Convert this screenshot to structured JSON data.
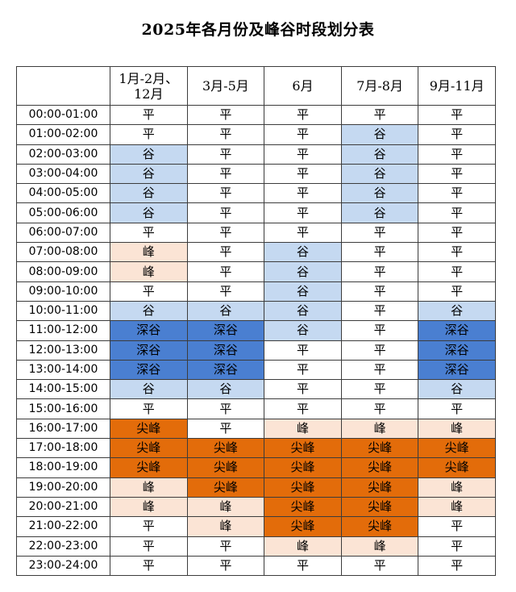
{
  "title": "2025年各月份及峰谷时段划分表",
  "header": {
    "time_col": "",
    "periods": [
      "1月-2月、12月",
      "3月-5月",
      "6月",
      "7月-8月",
      "9月-11月"
    ]
  },
  "rows": [
    {
      "time": "00:00-01:00",
      "cells": [
        "平",
        "平",
        "平",
        "平",
        "平"
      ]
    },
    {
      "time": "01:00-02:00",
      "cells": [
        "平",
        "平",
        "平",
        "谷",
        "平"
      ]
    },
    {
      "time": "02:00-03:00",
      "cells": [
        "谷",
        "平",
        "平",
        "谷",
        "平"
      ]
    },
    {
      "time": "03:00-04:00",
      "cells": [
        "谷",
        "平",
        "平",
        "谷",
        "平"
      ]
    },
    {
      "time": "04:00-05:00",
      "cells": [
        "谷",
        "平",
        "平",
        "谷",
        "平"
      ]
    },
    {
      "time": "05:00-06:00",
      "cells": [
        "谷",
        "平",
        "平",
        "谷",
        "平"
      ]
    },
    {
      "time": "06:00-07:00",
      "cells": [
        "平",
        "平",
        "平",
        "平",
        "平"
      ]
    },
    {
      "time": "07:00-08:00",
      "cells": [
        "峰",
        "平",
        "谷",
        "平",
        "平"
      ]
    },
    {
      "time": "08:00-09:00",
      "cells": [
        "峰",
        "平",
        "谷",
        "平",
        "平"
      ]
    },
    {
      "time": "09:00-10:00",
      "cells": [
        "平",
        "平",
        "谷",
        "平",
        "平"
      ]
    },
    {
      "time": "10:00-11:00",
      "cells": [
        "谷",
        "谷",
        "谷",
        "平",
        "谷"
      ]
    },
    {
      "time": "11:00-12:00",
      "cells": [
        "深谷",
        "深谷",
        "谷",
        "平",
        "深谷"
      ]
    },
    {
      "time": "12:00-13:00",
      "cells": [
        "深谷",
        "深谷",
        "平",
        "平",
        "深谷"
      ]
    },
    {
      "time": "13:00-14:00",
      "cells": [
        "深谷",
        "深谷",
        "平",
        "平",
        "深谷"
      ]
    },
    {
      "time": "14:00-15:00",
      "cells": [
        "谷",
        "谷",
        "平",
        "平",
        "谷"
      ]
    },
    {
      "time": "15:00-16:00",
      "cells": [
        "平",
        "平",
        "平",
        "平",
        "平"
      ]
    },
    {
      "time": "16:00-17:00",
      "cells": [
        "尖峰",
        "平",
        "峰",
        "峰",
        "峰"
      ]
    },
    {
      "time": "17:00-18:00",
      "cells": [
        "尖峰",
        "尖峰",
        "尖峰",
        "尖峰",
        "尖峰"
      ]
    },
    {
      "time": "18:00-19:00",
      "cells": [
        "尖峰",
        "尖峰",
        "尖峰",
        "尖峰",
        "尖峰"
      ]
    },
    {
      "time": "19:00-20:00",
      "cells": [
        "峰",
        "尖峰",
        "尖峰",
        "尖峰",
        "峰"
      ]
    },
    {
      "time": "20:00-21:00",
      "cells": [
        "峰",
        "峰",
        "尖峰",
        "尖峰",
        "峰"
      ]
    },
    {
      "time": "21:00-22:00",
      "cells": [
        "平",
        "峰",
        "尖峰",
        "尖峰",
        "平"
      ]
    },
    {
      "time": "22:00-23:00",
      "cells": [
        "平",
        "平",
        "峰",
        "峰",
        "平"
      ]
    },
    {
      "time": "23:00-24:00",
      "cells": [
        "平",
        "平",
        "平",
        "平",
        "平"
      ]
    }
  ],
  "colors": {
    "平": "#ffffff",
    "谷": "#c5d9f1",
    "深谷": "#4a7fd1",
    "峰": "#fbe4d5",
    "尖峰": "#e36c0a"
  }
}
